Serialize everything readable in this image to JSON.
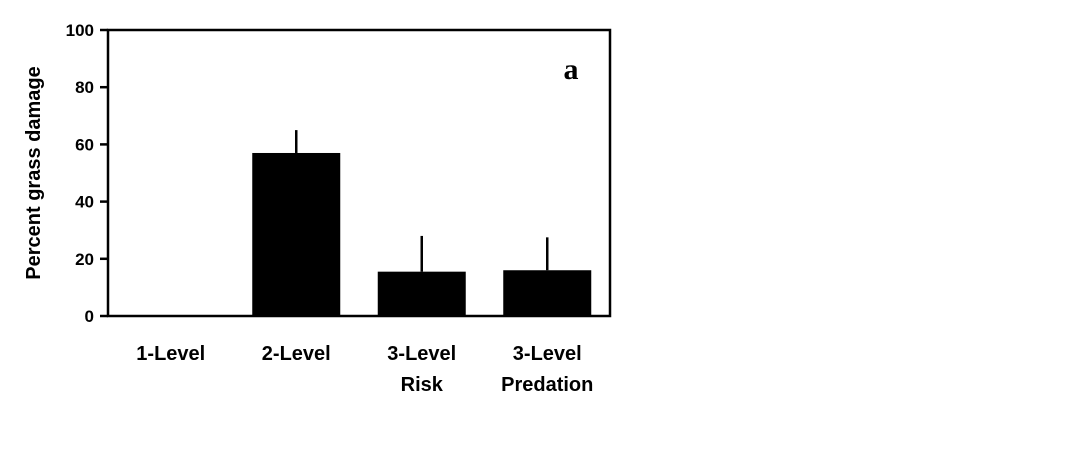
{
  "chart_data": {
    "type": "bar",
    "panel_label": "a",
    "title": "",
    "xlabel": "",
    "ylabel": "Percent grass damage",
    "ylim": [
      0,
      100
    ],
    "yticks": [
      "0",
      "20",
      "40",
      "60",
      "80",
      "100"
    ],
    "categories": [
      {
        "line1": "1-Level",
        "line2": ""
      },
      {
        "line1": "2-Level",
        "line2": ""
      },
      {
        "line1": "3-Level",
        "line2": "Risk"
      },
      {
        "line1": "3-Level",
        "line2": "Predation"
      }
    ],
    "values": [
      0,
      57,
      15.5,
      16
    ],
    "error_upper": [
      0,
      65,
      28,
      27.5
    ],
    "bar_color": "#000000",
    "grid": false,
    "legend": "none"
  }
}
